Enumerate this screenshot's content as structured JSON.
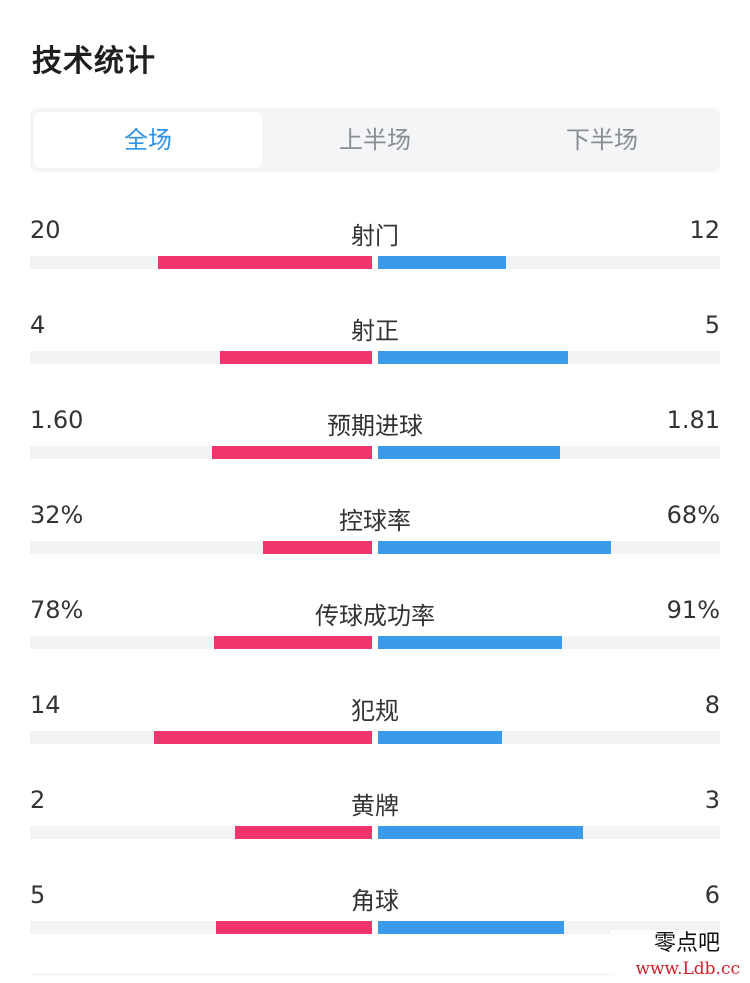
{
  "header": {
    "title": "技术统计"
  },
  "tabs": [
    {
      "label": "全场",
      "active": true
    },
    {
      "label": "上半场",
      "active": false
    },
    {
      "label": "下半场",
      "active": false
    }
  ],
  "colors": {
    "left_team": "#f0346c",
    "right_team": "#3a9bea",
    "active_tab": "#2f93e8"
  },
  "stats": [
    {
      "label": "射门",
      "left": "20",
      "right": "12",
      "left_share": 0.625,
      "right_share": 0.375
    },
    {
      "label": "射正",
      "left": "4",
      "right": "5",
      "left_share": 0.444,
      "right_share": 0.556
    },
    {
      "label": "预期进球",
      "left": "1.60",
      "right": "1.81",
      "left_share": 0.469,
      "right_share": 0.531
    },
    {
      "label": "控球率",
      "left": "32%",
      "right": "68%",
      "left_share": 0.32,
      "right_share": 0.68
    },
    {
      "label": "传球成功率",
      "left": "78%",
      "right": "91%",
      "left_share": 0.462,
      "right_share": 0.538
    },
    {
      "label": "犯规",
      "left": "14",
      "right": "8",
      "left_share": 0.636,
      "right_share": 0.364
    },
    {
      "label": "黄牌",
      "left": "2",
      "right": "3",
      "left_share": 0.4,
      "right_share": 0.6
    },
    {
      "label": "角球",
      "left": "5",
      "right": "6",
      "left_share": 0.455,
      "right_share": 0.545
    }
  ],
  "watermark": {
    "name": "零点吧",
    "url": "www.Ldb.cc"
  }
}
